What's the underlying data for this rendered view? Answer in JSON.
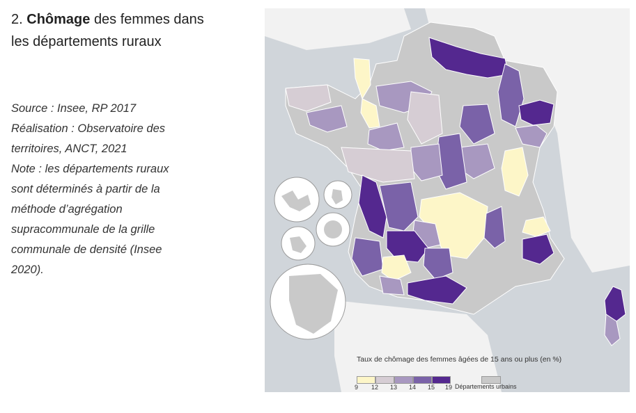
{
  "title": {
    "number": "2.",
    "bold": "Chômage",
    "rest": "des femmes dans les départements ruraux"
  },
  "caption": {
    "source": "Source : Insee, RP 2017",
    "realisation": "Réalisation : Observatoire des territoires, ANCT, 2021",
    "note": "Note : les départements ruraux sont déterminés à partir de la méthode d’agrégation supracommunale de la grille communale de densité (Insee 2020)."
  },
  "legend": {
    "title": "Taux de chômage des femmes âgées de 15 ans ou plus (en %)",
    "classes": [
      {
        "color": "#fdf6c8"
      },
      {
        "color": "#d6cdd4"
      },
      {
        "color": "#a898c0"
      },
      {
        "color": "#7a62a8"
      },
      {
        "color": "#54288f"
      }
    ],
    "breaks": [
      "9",
      "12",
      "13",
      "14",
      "15",
      "19"
    ],
    "urban_label": "Départements urbains",
    "urban_color": "#c9c9c9"
  },
  "colors": {
    "sea": "#d0d5da",
    "land_outside": "#f2f2f2",
    "urban": "#c9c9c9",
    "border": "#ffffff"
  }
}
